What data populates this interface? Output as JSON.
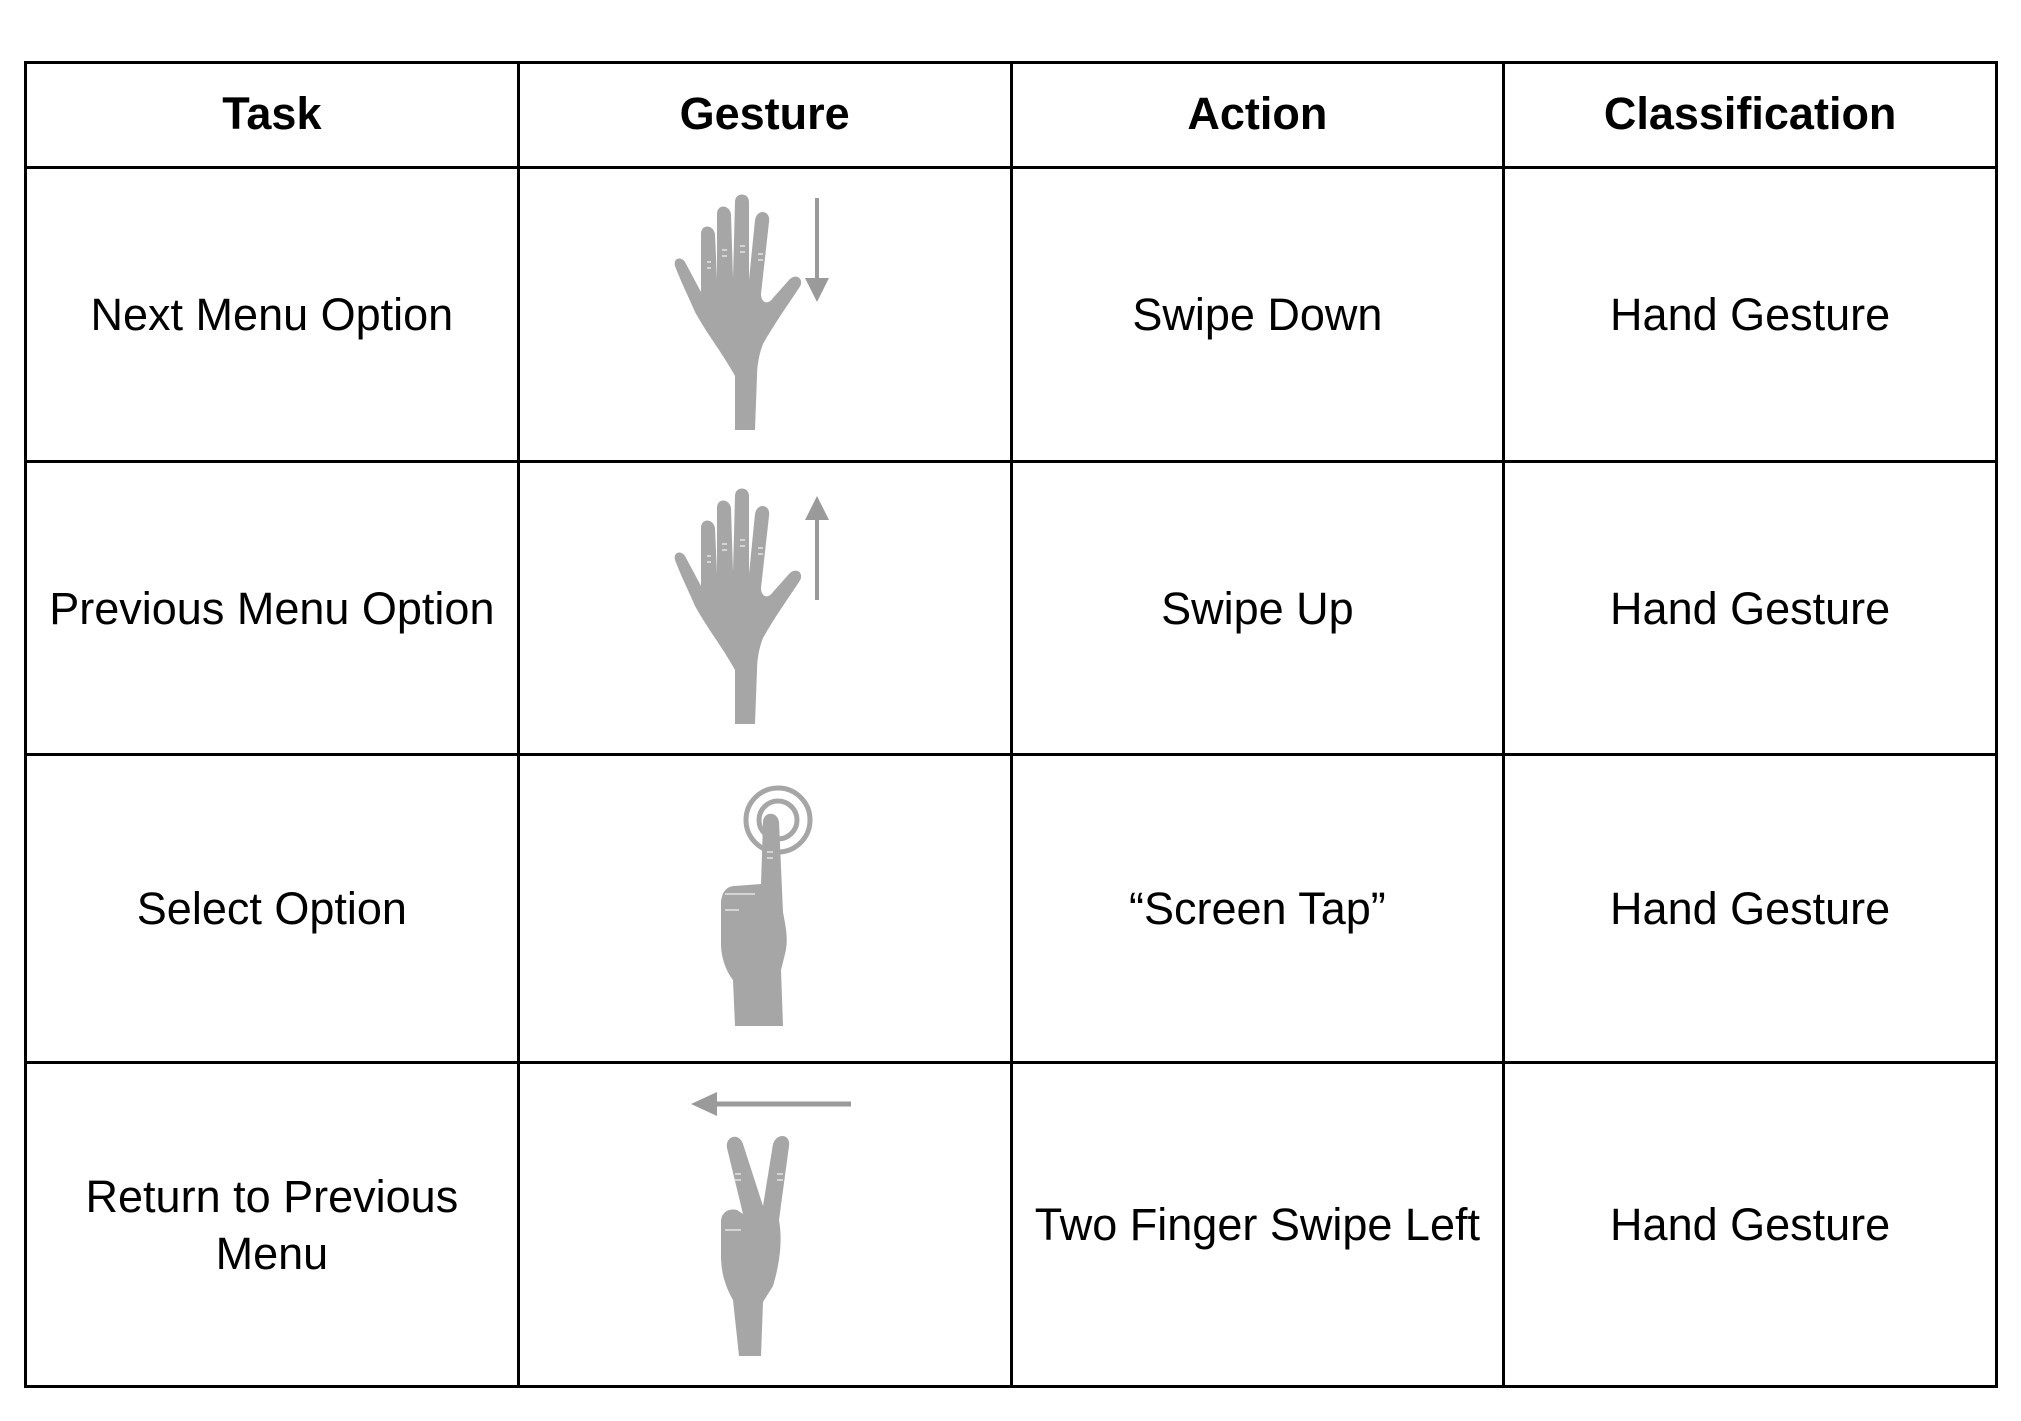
{
  "table": {
    "headers": [
      "Task",
      "Gesture",
      "Action",
      "Classification"
    ],
    "rows": [
      {
        "task": "Next Menu Option",
        "gesture_icon": "open-hand-swipe-down-icon",
        "action": "Swipe Down",
        "classification": "Hand Gesture"
      },
      {
        "task": "Previous Menu Option",
        "gesture_icon": "open-hand-swipe-up-icon",
        "action": "Swipe Up",
        "classification": "Hand Gesture"
      },
      {
        "task": "Select Option",
        "gesture_icon": "finger-screen-tap-icon",
        "action": "“Screen Tap”",
        "classification": "Hand Gesture"
      },
      {
        "task": "Return to Previous Menu",
        "gesture_icon": "two-finger-swipe-left-icon",
        "action": "Two Finger Swipe Left",
        "classification": "Hand Gesture"
      }
    ]
  },
  "colors": {
    "border": "#000000",
    "hand": "#a6a6a6",
    "hand_detail": "#d4d4d4",
    "arrow": "#9a9a9a"
  }
}
